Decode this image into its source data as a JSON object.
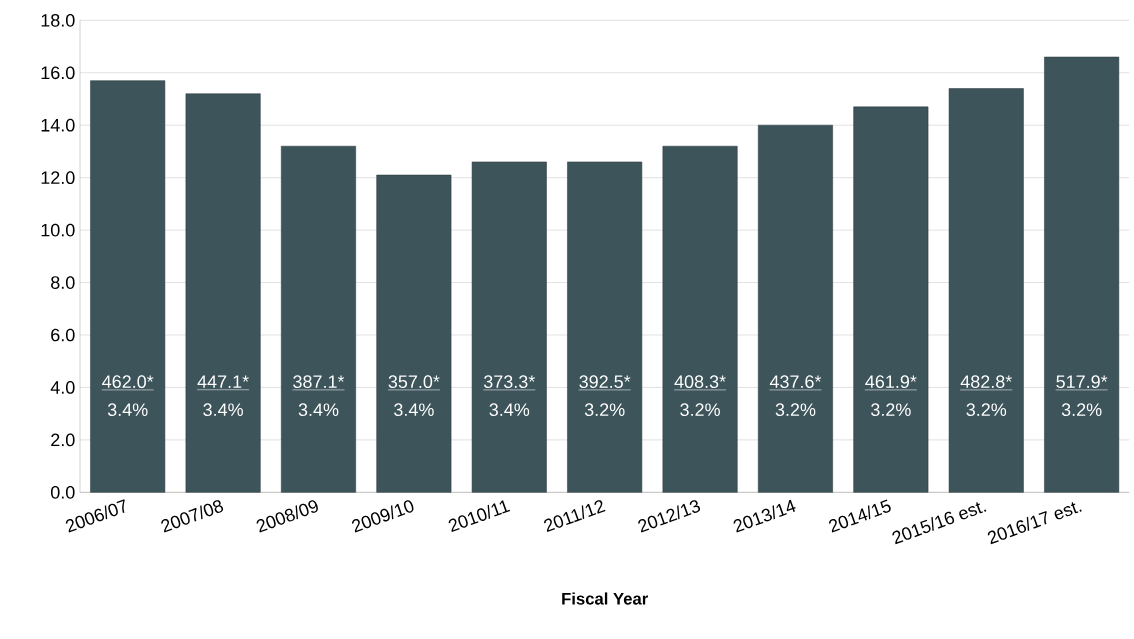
{
  "chart_data": {
    "type": "bar",
    "xlabel": "Fiscal Year",
    "categories": [
      "2006/07",
      "2007/08",
      "2008/09",
      "2009/10",
      "2010/11",
      "2011/12",
      "2012/13",
      "2013/14",
      "2014/15",
      "2015/16 est.",
      "2016/17 est."
    ],
    "values": [
      15.7,
      15.2,
      13.2,
      12.1,
      12.6,
      12.6,
      13.2,
      14.0,
      14.7,
      15.4,
      16.6
    ],
    "color": "#3d545a",
    "ylim": [
      0,
      18
    ],
    "yticks": [
      {
        "value": 0,
        "label": "0.0"
      },
      {
        "value": 2,
        "label": "2.0"
      },
      {
        "value": 4,
        "label": "4.0"
      },
      {
        "value": 6,
        "label": "6.0"
      },
      {
        "value": 8,
        "label": "8.0"
      },
      {
        "value": 10,
        "label": "10.0"
      },
      {
        "value": 12,
        "label": "12.0"
      },
      {
        "value": 14,
        "label": "14.0"
      },
      {
        "value": 16,
        "label": "16.0"
      },
      {
        "value": 18,
        "label": "18.0"
      }
    ],
    "grid": "y",
    "annotations": [
      "462.0*",
      "3.4%",
      "447.1*",
      "3.4%",
      "387.1*",
      "3.4%",
      "357.0*",
      "3.4%",
      "373.3*",
      "3.4%",
      "392.5*",
      "3.2%",
      "408.3*",
      "3.2%",
      "437.6*",
      "3.2%",
      "461.9*",
      "3.2%",
      "482.8*",
      "3.2%",
      "517.9*",
      "3.2%"
    ]
  }
}
